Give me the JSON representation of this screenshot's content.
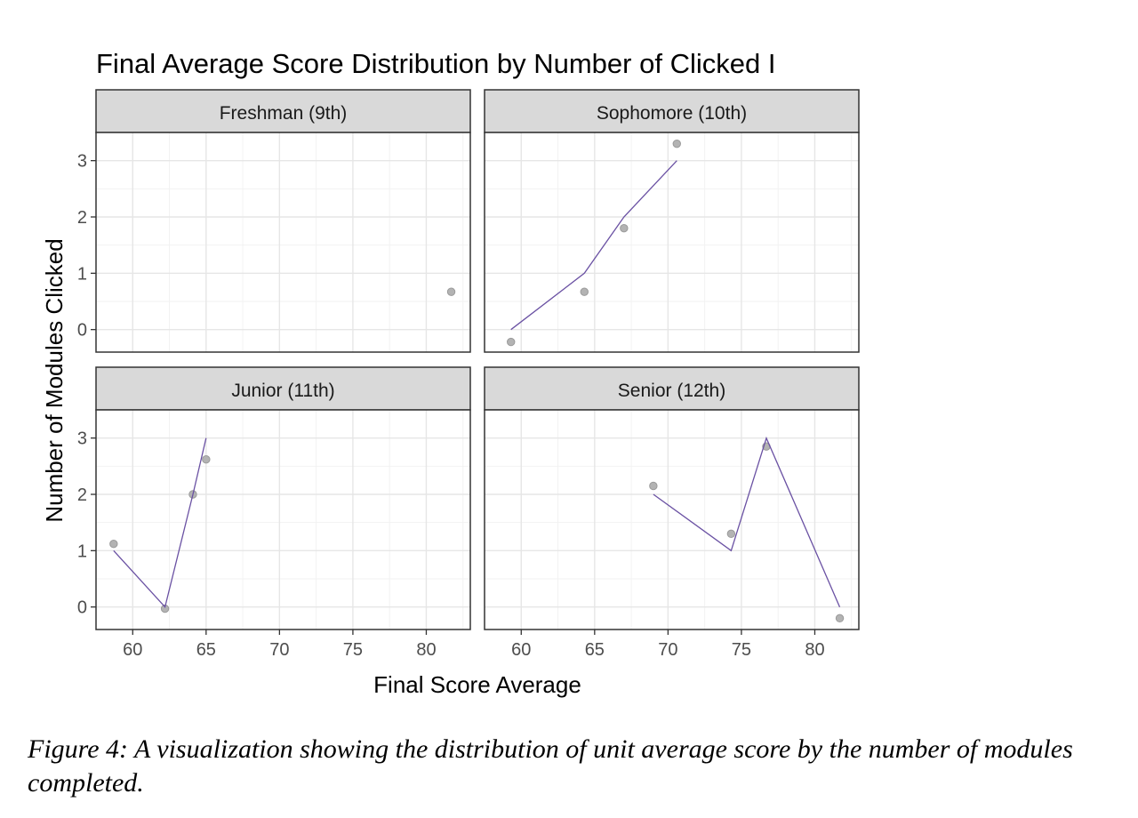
{
  "chart_data": {
    "type": "scatter",
    "title": "Final Average Score Distribution by Number of Clicked I",
    "xlabel": "Final Score Average",
    "ylabel": "Number of Modules Clicked",
    "xlim": [
      57.5,
      83
    ],
    "ylim": [
      -0.4,
      3.5
    ],
    "x_ticks": [
      60,
      65,
      70,
      75,
      80
    ],
    "y_ticks": [
      0,
      1,
      2,
      3
    ],
    "grid": true,
    "point_color": "#b3b3b3",
    "line_color": "#6a51a3",
    "panels": [
      {
        "name": "Freshman (9th)",
        "points": [
          {
            "x": 81.7,
            "y": 0.67
          }
        ],
        "line": []
      },
      {
        "name": "Sophomore (10th)",
        "points": [
          {
            "x": 59.3,
            "y": -0.22
          },
          {
            "x": 64.3,
            "y": 0.67
          },
          {
            "x": 67.0,
            "y": 1.8
          },
          {
            "x": 70.6,
            "y": 3.3
          }
        ],
        "line": [
          {
            "x": 59.3,
            "y": 0
          },
          {
            "x": 64.3,
            "y": 1
          },
          {
            "x": 67.0,
            "y": 2
          },
          {
            "x": 70.6,
            "y": 3
          }
        ]
      },
      {
        "name": "Junior (11th)",
        "points": [
          {
            "x": 58.7,
            "y": 1.12
          },
          {
            "x": 62.2,
            "y": -0.03
          },
          {
            "x": 64.1,
            "y": 2.0
          },
          {
            "x": 65.0,
            "y": 2.62
          }
        ],
        "line": [
          {
            "x": 58.7,
            "y": 1
          },
          {
            "x": 62.2,
            "y": 0
          },
          {
            "x": 64.1,
            "y": 2
          },
          {
            "x": 65.0,
            "y": 3
          }
        ]
      },
      {
        "name": "Senior (12th)",
        "points": [
          {
            "x": 69.0,
            "y": 2.15
          },
          {
            "x": 74.3,
            "y": 1.3
          },
          {
            "x": 76.7,
            "y": 2.85
          },
          {
            "x": 81.7,
            "y": -0.2
          }
        ],
        "line": [
          {
            "x": 69.0,
            "y": 2
          },
          {
            "x": 74.3,
            "y": 1
          },
          {
            "x": 76.7,
            "y": 3
          },
          {
            "x": 81.7,
            "y": 0
          }
        ]
      }
    ]
  },
  "caption": "Figure 4: A visualization showing the distribution of unit average score by the number of modules completed."
}
